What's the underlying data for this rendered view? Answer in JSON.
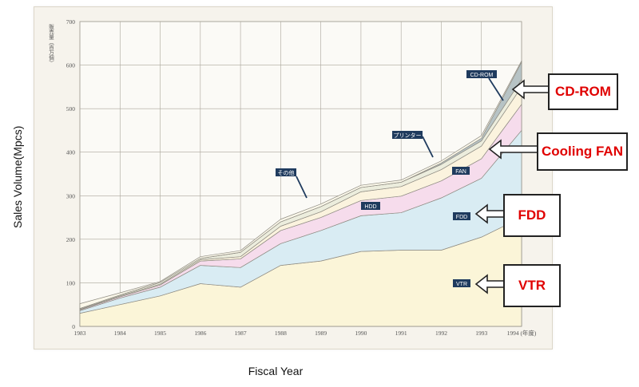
{
  "page": {
    "y_axis_title": "Sales Volume(Mpcs)",
    "x_axis_title": "Fiscal Year",
    "y_unit_jp": "販売量（百万個）",
    "year_unit_jp": "(年度)"
  },
  "callouts": [
    "CD-ROM",
    "Cooling FAN",
    "FDD",
    "VTR"
  ],
  "colors": {
    "VTR": "#fbf5d8",
    "FDD": "#d9ecf3",
    "HDD": "#f6dcec",
    "FAN": "#fbf3de",
    "プリンター": "#eceddd",
    "CD-ROM": "#b7c3c5",
    "その他": "#fbf8ea",
    "label_box": "#1f3b5e",
    "callout_text": "#e00000"
  },
  "chart_data": {
    "type": "area",
    "stacked": true,
    "x": [
      1983,
      1984,
      1985,
      1986,
      1987,
      1988,
      1989,
      1990,
      1991,
      1992,
      1993,
      1994
    ],
    "x_tick_labels": [
      "1983",
      "1984",
      "1985",
      "1986",
      "1987",
      "1988",
      "1989",
      "1990",
      "1991",
      "1992",
      "1993",
      "1994 (年度)"
    ],
    "ylim": [
      0,
      700
    ],
    "yticks": [
      0,
      100,
      200,
      300,
      400,
      500,
      600,
      700
    ],
    "grid": true,
    "series": [
      {
        "name": "VTR",
        "values": [
          30,
          50,
          70,
          98,
          90,
          140,
          150,
          172,
          175,
          175,
          205,
          250
        ]
      },
      {
        "name": "FDD",
        "values": [
          6,
          15,
          20,
          42,
          45,
          50,
          70,
          82,
          86,
          120,
          135,
          200
        ]
      },
      {
        "name": "HDD",
        "values": [
          2,
          3,
          5,
          10,
          20,
          30,
          30,
          35,
          38,
          39,
          45,
          60
        ]
      },
      {
        "name": "FAN",
        "values": [
          1,
          2,
          2,
          3,
          5,
          10,
          13,
          20,
          22,
          26,
          29,
          40
        ]
      },
      {
        "name": "プリンター",
        "values": [
          2,
          2,
          4,
          3,
          10,
          10,
          12,
          10,
          10,
          12,
          12,
          17
        ]
      },
      {
        "name": "CD-ROM",
        "values": [
          0,
          0,
          0,
          0,
          0,
          0,
          0,
          0,
          0,
          3,
          6,
          40
        ]
      },
      {
        "name": "その他",
        "values": [
          11,
          5,
          2,
          4,
          4,
          6,
          6,
          5,
          5,
          5,
          6,
          3
        ]
      }
    ],
    "series_labels": [
      "VTR",
      "FDD",
      "HDD",
      "FAN",
      "プリンター",
      "CD-ROM",
      "その他"
    ]
  }
}
